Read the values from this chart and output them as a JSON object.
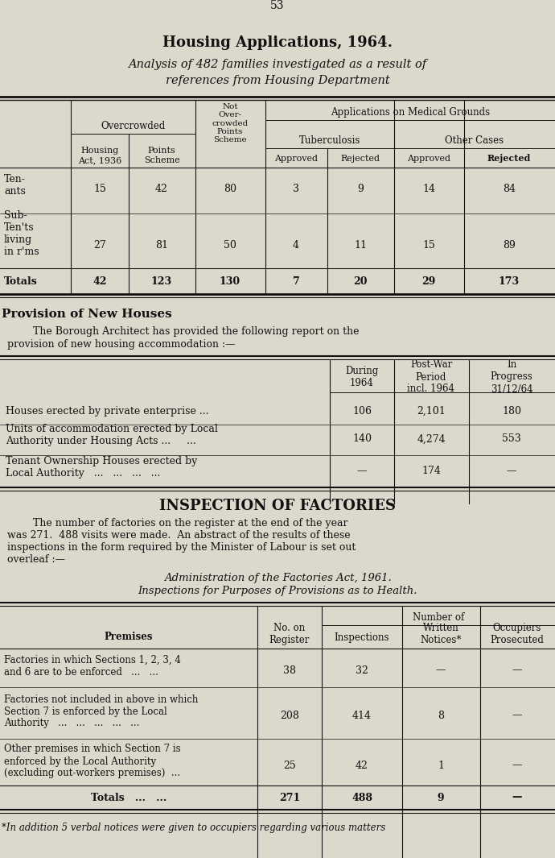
{
  "bg_color": "#ddd8cc",
  "text_color": "#111111",
  "page_number": "53",
  "title1": "Housing Applications, 1964.",
  "title2": "Analysis of 482 families investigated as a result of",
  "title3": "references from Housing Department",
  "section2_title": "Provision of New Houses",
  "section2_text1": "        The Borough Architect has provided the following report on the",
  "section2_text2": "provision of new housing accommodation :—",
  "section3_title": "INSPECTION OF FACTORIES",
  "section3_p1": "        The number of factories on the register at the end of the year",
  "section3_p2": "was 271.  488 visits were made.  An abstract of the results of these",
  "section3_p3": "inspections in the form required by the Minister of Labour is set out",
  "section3_p4": "overleaf :—",
  "section3_italic1": "Administration of the Factories Act, 1961.",
  "section3_italic2": "Inspections for Purposes of Provisions as to Health.",
  "footnote": "*In addition 5 verbal notices were given to occupiers regarding various matters"
}
